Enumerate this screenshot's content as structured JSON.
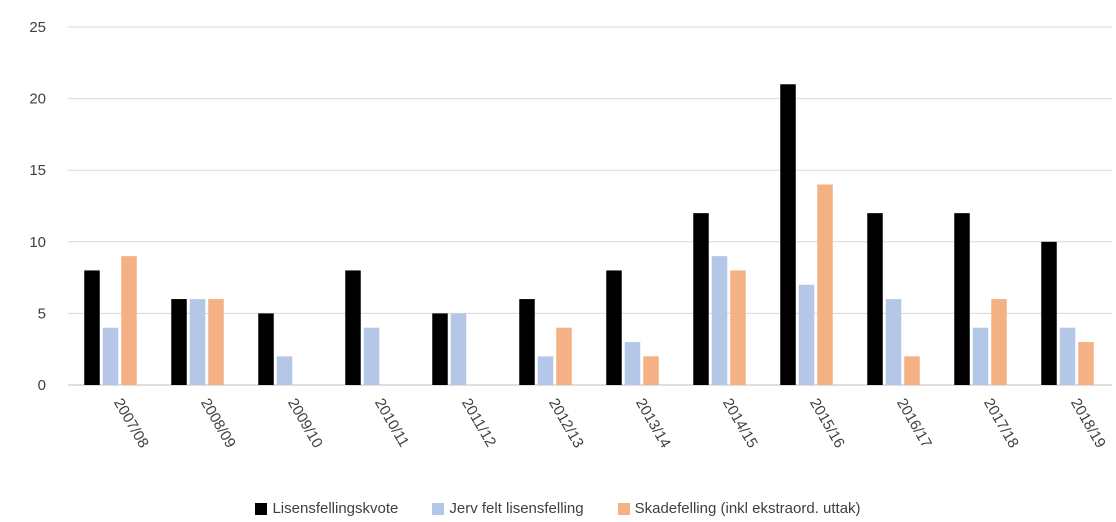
{
  "chart_data": {
    "type": "bar",
    "title": "",
    "xlabel": "",
    "ylabel": "",
    "ylim": [
      0,
      25
    ],
    "yticks": [
      0,
      5,
      10,
      15,
      20,
      25
    ],
    "grid": true,
    "legend_position": "bottom",
    "categories": [
      "2007/08",
      "2008/09",
      "2009/10",
      "2010/11",
      "2011/12",
      "2012/13",
      "2013/14",
      "2014/15",
      "2015/16",
      "2016/17",
      "2017/18",
      "2018/19"
    ],
    "series": [
      {
        "name": "Lisensfellingskvote",
        "color": "#000000",
        "values": [
          8,
          6,
          5,
          8,
          5,
          6,
          8,
          12,
          21,
          12,
          12,
          10
        ]
      },
      {
        "name": "Jerv felt lisensfelling",
        "color": "#B4C7E7",
        "values": [
          4,
          6,
          2,
          4,
          5,
          2,
          3,
          9,
          7,
          6,
          4,
          4
        ]
      },
      {
        "name": "Skadefelling (inkl ekstraord. uttak)",
        "color": "#F4B183",
        "values": [
          9,
          6,
          0,
          0,
          0,
          4,
          2,
          8,
          14,
          2,
          6,
          3
        ]
      }
    ]
  }
}
